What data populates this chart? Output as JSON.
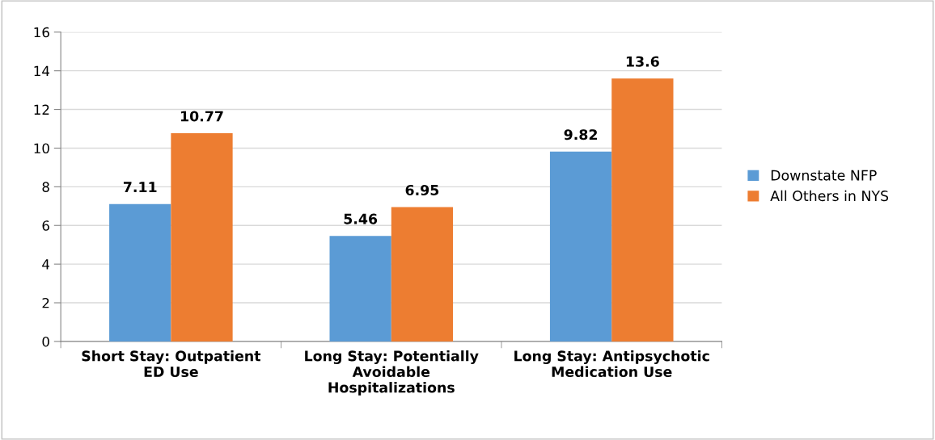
{
  "chart_data": {
    "type": "bar",
    "categories": [
      "Short Stay: Outpatient ED Use",
      "Long Stay: Potentially Avoidable Hospitalizations",
      "Long Stay: Antipsychotic Medication Use"
    ],
    "series": [
      {
        "name": "Downstate NFP",
        "color": "#5b9bd5",
        "values": [
          7.11,
          5.46,
          9.82
        ]
      },
      {
        "name": "All Others in NYS",
        "color": "#ed7d31",
        "values": [
          10.77,
          6.95,
          13.6
        ]
      }
    ],
    "ylim": [
      0,
      16
    ],
    "yticks": [
      0,
      2,
      4,
      6,
      8,
      10,
      12,
      14,
      16
    ],
    "grid": "y",
    "legend": "right",
    "data_labels": true
  }
}
